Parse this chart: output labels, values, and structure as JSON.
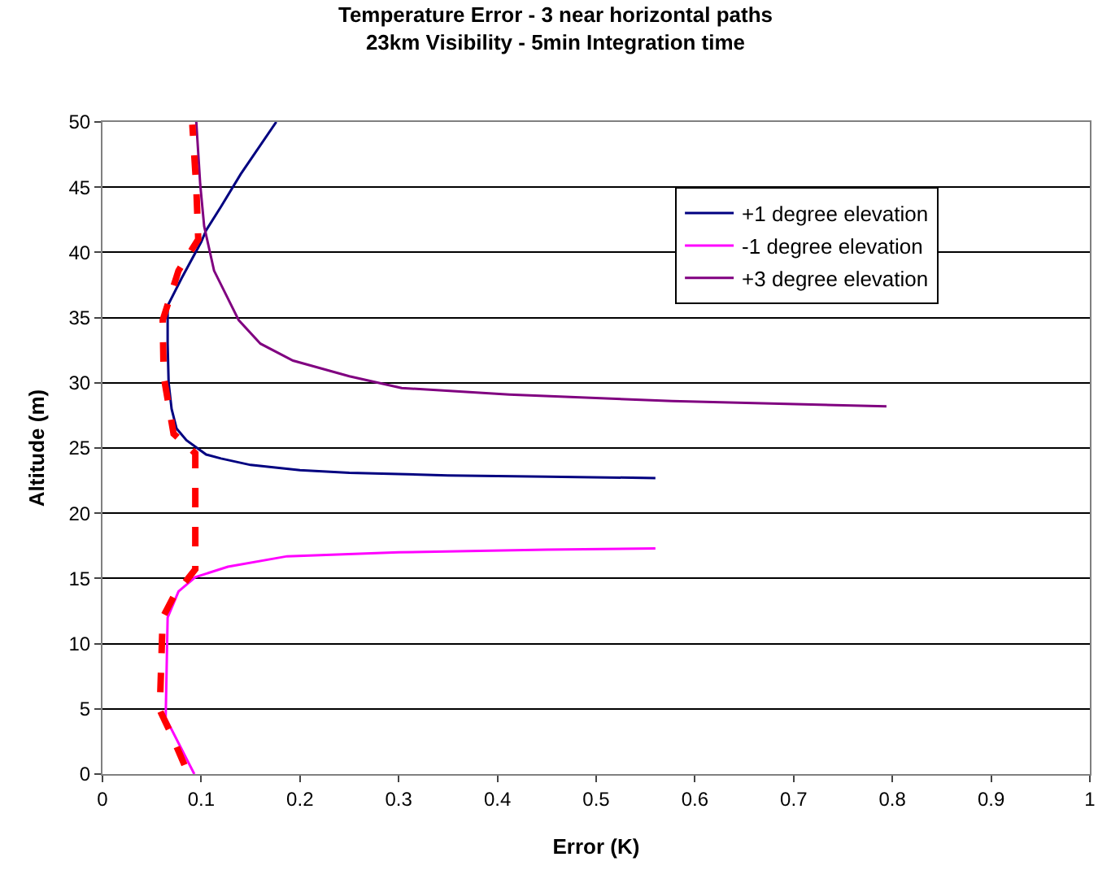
{
  "chart_data": {
    "type": "line",
    "title": "Temperature Error - 3 near horizontal paths",
    "subtitle": "23km Visibility - 5min Integration time",
    "xlabel": "Error (K)",
    "ylabel": "Altitude (m)",
    "series": [
      {
        "name": "+1 degree elevation",
        "color": "#000080",
        "x": [
          0.56,
          0.45,
          0.35,
          0.25,
          0.2,
          0.15,
          0.12,
          0.105,
          0.085,
          0.075,
          0.07,
          0.067,
          0.066,
          0.066,
          0.08,
          0.1,
          0.105,
          0.12,
          0.14,
          0.176
        ],
        "values": [
          22.7,
          22.8,
          22.9,
          23.1,
          23.3,
          23.7,
          24.2,
          24.5,
          25.6,
          26.5,
          28,
          30,
          33,
          35.9,
          38,
          40.8,
          41.7,
          43.5,
          46,
          50
        ]
      },
      {
        "name": "-1 degree elevation",
        "color": "#ff00ff",
        "x": [
          0.093,
          0.064,
          0.066,
          0.077,
          0.094,
          0.127,
          0.187,
          0.3,
          0.45,
          0.56
        ],
        "values": [
          0,
          4.3,
          12,
          14,
          15.1,
          15.9,
          16.7,
          17,
          17.2,
          17.3
        ]
      },
      {
        "name": "+3 degree elevation",
        "color": "#800080",
        "x": [
          0.794,
          0.577,
          0.412,
          0.303,
          0.25,
          0.193,
          0.16,
          0.138,
          0.113,
          0.103,
          0.099,
          0.095
        ],
        "values": [
          28.2,
          28.6,
          29.1,
          29.6,
          30.5,
          31.7,
          33,
          34.8,
          38.6,
          42,
          45.2,
          50
        ]
      },
      {
        "color": "#ff0000",
        "line_style": "dashed",
        "x": [
          0.083,
          0.07,
          0.058,
          0.061,
          0.072,
          0.094,
          0.094,
          0.072,
          0.062,
          0.061,
          0.077,
          0.097,
          0.095,
          0.091
        ],
        "values": [
          0.7,
          3,
          4.9,
          12,
          13.6,
          15.7,
          24.6,
          26.1,
          30.5,
          34.8,
          38.6,
          41,
          45,
          49.8
        ]
      }
    ],
    "xlim": [
      0,
      1
    ],
    "xticks": [
      0,
      0.1,
      0.2,
      0.3,
      0.4,
      0.5,
      0.6,
      0.7,
      0.8,
      0.9,
      1
    ],
    "ylim": [
      0,
      50
    ],
    "yticks": [
      0,
      5,
      10,
      15,
      20,
      25,
      30,
      35,
      40,
      45,
      50
    ],
    "grid": "y",
    "legend": "top right",
    "line_style": "solid",
    "marker": "none"
  }
}
